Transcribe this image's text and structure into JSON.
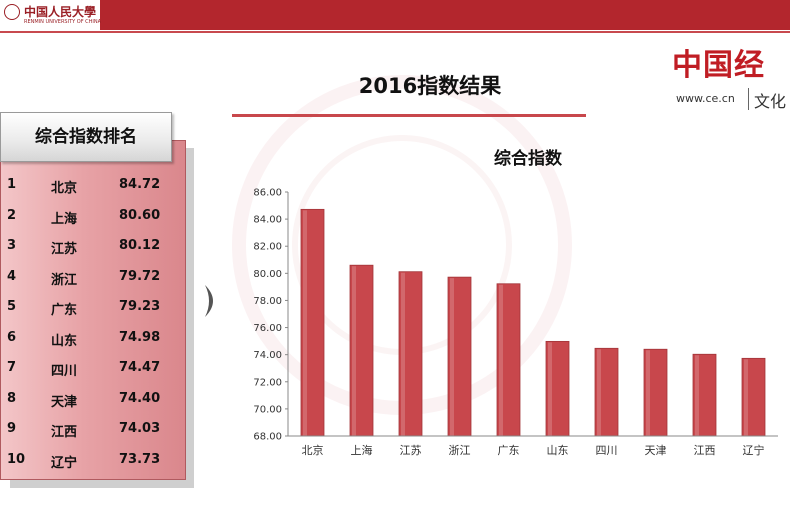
{
  "header": {
    "university_name": "中国人民大學",
    "university_sub": "RENMIN UNIVERSITY OF CHINA"
  },
  "page_title": "2016指数结果",
  "brand": {
    "logo_text": "中国经",
    "url": "www.ce.cn",
    "tag": "文化"
  },
  "ranking": {
    "header": "综合指数排名",
    "rows": [
      {
        "rank": "1",
        "name": "北京",
        "value": "84.72"
      },
      {
        "rank": "2",
        "name": "上海",
        "value": "80.60"
      },
      {
        "rank": "3",
        "name": "江苏",
        "value": "80.12"
      },
      {
        "rank": "4",
        "name": "浙江",
        "value": "79.72"
      },
      {
        "rank": "5",
        "name": "广东",
        "value": "79.23"
      },
      {
        "rank": "6",
        "name": "山东",
        "value": "74.98"
      },
      {
        "rank": "7",
        "name": "四川",
        "value": "74.47"
      },
      {
        "rank": "8",
        "name": "天津",
        "value": "74.40"
      },
      {
        "rank": "9",
        "name": "江西",
        "value": "74.03"
      },
      {
        "rank": "10",
        "name": "辽宁",
        "value": "73.73"
      }
    ]
  },
  "colors": {
    "accent": "#b3262d",
    "bar": "#c8474c"
  },
  "chart_data": {
    "type": "bar",
    "title": "综合指数",
    "categories": [
      "北京",
      "上海",
      "江苏",
      "浙江",
      "广东",
      "山东",
      "四川",
      "天津",
      "江西",
      "辽宁"
    ],
    "values": [
      84.72,
      80.6,
      80.12,
      79.72,
      79.23,
      74.98,
      74.47,
      74.4,
      74.03,
      73.73
    ],
    "ylim": [
      68,
      86
    ],
    "yticks": [
      "86.00",
      "84.00",
      "82.00",
      "80.00",
      "78.00",
      "76.00",
      "74.00",
      "72.00",
      "70.00",
      "68.00"
    ],
    "grid": false,
    "legend": "none"
  }
}
